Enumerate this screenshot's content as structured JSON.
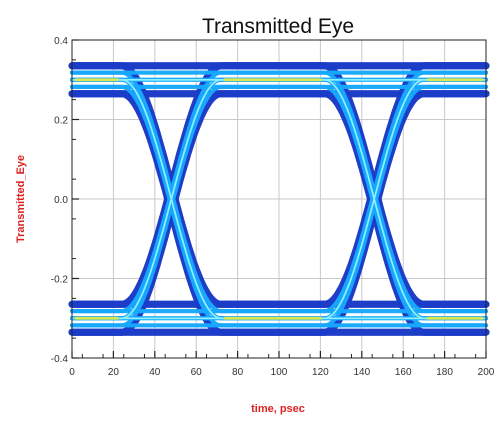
{
  "chart_data": {
    "type": "eye-diagram",
    "title": "Transmitted Eye",
    "xlabel": "time, psec",
    "ylabel": "Transmitted_Eye",
    "xlim": [
      0,
      200
    ],
    "ylim": [
      -0.4,
      0.4
    ],
    "x_ticks": [
      "0",
      "20",
      "40",
      "60",
      "80",
      "100",
      "120",
      "140",
      "160",
      "180",
      "200"
    ],
    "y_ticks": [
      "-0.4",
      "-0.2",
      "0.0",
      "0.2",
      "0.4"
    ],
    "high_level": 0.3,
    "low_level": -0.3,
    "crossing_times": [
      48,
      146
    ],
    "grid": true,
    "colors": {
      "label": "#dd2222",
      "grid": "#c8c8c8",
      "frame": "#222222",
      "envelope": "#1c3cc8",
      "trace": "#18a8ff",
      "core": "#8ff0ff",
      "hot": "#e8e838"
    }
  }
}
